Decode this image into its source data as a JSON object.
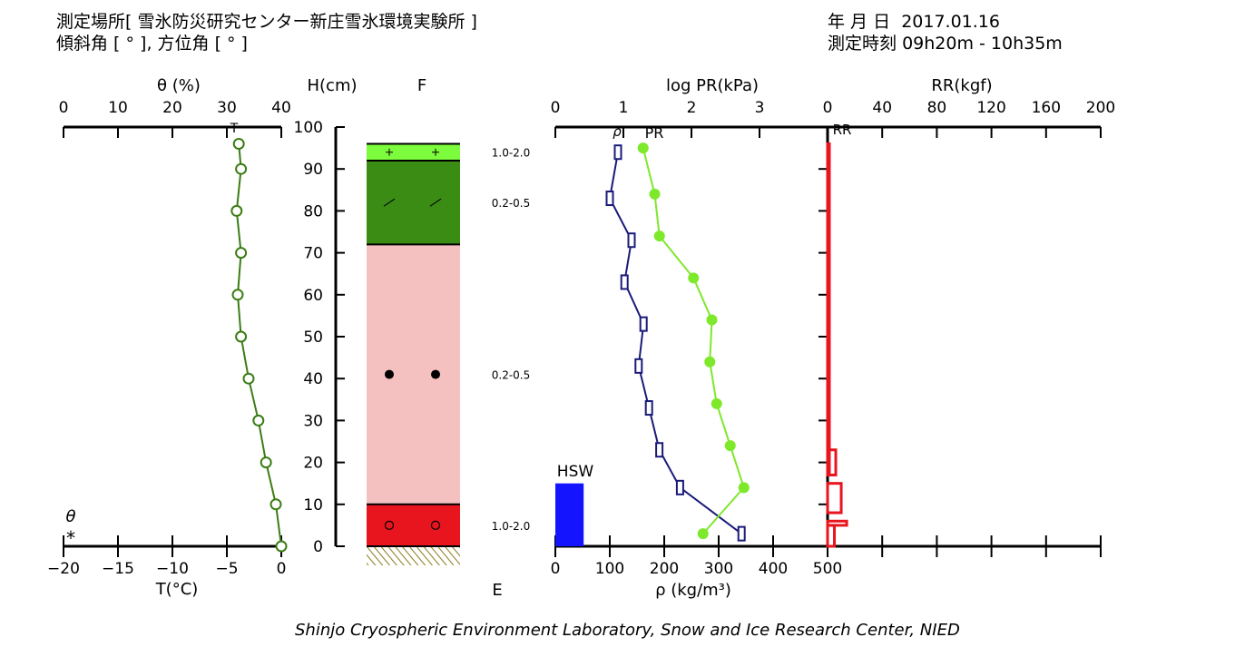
{
  "header": {
    "site_label": "測定場所",
    "site_value": "[ 雪氷防災研究センター新庄雪氷環境実験所 ]",
    "angle_label": "傾斜角 [ ° ], 方位角 [ ° ]",
    "date_label": "年 月 日",
    "date_value": "2017.01.16",
    "time_label": "測定時刻",
    "time_value": "09h20m - 10h35m"
  },
  "footer": "Shinjo Cryospheric Environment Laboratory, Snow and Ice Research Center, NIED",
  "colors": {
    "theta": "#3a7d14",
    "rho": "#1a1a7a",
    "pr": "#7ee82a",
    "rr": "#e8141e",
    "hsw": "#1414ff",
    "layer_top": "#7cfc3c",
    "layer_green": "#3a8c14",
    "layer_pink": "#f5c0c0",
    "layer_red": "#e8141e",
    "ground": "#8a7a1a"
  },
  "chart_data": {
    "type": "snow-pit-profile",
    "panels": [
      {
        "id": "theta_temperature",
        "top_axis_label": "θ (%)",
        "top_ticks": [
          "0",
          "10",
          "20",
          "30",
          "40"
        ],
        "top_range": [
          0,
          40
        ],
        "bottom_axis_label": "T(°C)",
        "bottom_ticks": [
          "−20",
          "−15",
          "−10",
          "−5",
          "0"
        ],
        "bottom_range": [
          -20,
          0
        ],
        "theta_marker_label": "T",
        "legend_theta": "θ",
        "legend_star": "*",
        "temperature": {
          "h": [
            96,
            90,
            80,
            70,
            60,
            50,
            40,
            30,
            20,
            10,
            0
          ],
          "t": [
            -3.9,
            -3.7,
            -4.1,
            -3.7,
            -4.0,
            -3.7,
            -3.0,
            -2.1,
            -1.4,
            -0.5,
            0.0
          ]
        }
      },
      {
        "id": "layers",
        "y_axis_label": "H(cm)",
        "y_ticks": [
          "0",
          "10",
          "20",
          "30",
          "40",
          "50",
          "60",
          "70",
          "80",
          "90",
          "100"
        ],
        "y_range": [
          0,
          100
        ],
        "top_label": "F",
        "bottom_label": "E",
        "layers": [
          {
            "from": 92,
            "to": 96,
            "symbol": "+",
            "color_key": "layer_top",
            "grain_size": "1.0-2.0"
          },
          {
            "from": 72,
            "to": 92,
            "symbol": "/",
            "color_key": "layer_green",
            "grain_size": "0.2-0.5"
          },
          {
            "from": 10,
            "to": 72,
            "symbol": "●",
            "color_key": "layer_pink",
            "grain_size": "0.2-0.5"
          },
          {
            "from": 0,
            "to": 10,
            "symbol": "○",
            "color_key": "layer_red",
            "grain_size": "1.0-2.0"
          }
        ]
      },
      {
        "id": "density_pr",
        "top_axis_label": "log PR(kPa)",
        "top_ticks": [
          "0",
          "1",
          "2",
          "3"
        ],
        "top_range": [
          0,
          4
        ],
        "bottom_axis_label": "ρ (kg/m³)",
        "bottom_ticks": [
          "0",
          "100",
          "200",
          "300",
          "400",
          "500"
        ],
        "bottom_range": [
          0,
          500
        ],
        "rho_label": "ρ",
        "pr_label": "PR",
        "hsw_label": "HSW",
        "hsw_value": 52,
        "hsw_height": 15,
        "density": {
          "h": [
            94,
            83,
            73,
            63,
            53,
            43,
            33,
            23,
            14,
            3
          ],
          "rho": [
            115,
            100,
            140,
            127,
            162,
            153,
            172,
            191,
            229,
            342
          ]
        },
        "pr": {
          "h": [
            95,
            84,
            74,
            64,
            54,
            44,
            34,
            24,
            14,
            3
          ],
          "log_pr": [
            1.29,
            1.46,
            1.53,
            2.03,
            2.3,
            2.27,
            2.37,
            2.57,
            2.77,
            2.17
          ]
        }
      },
      {
        "id": "ram_resistance",
        "top_axis_label": "RR(kgf)",
        "top_ticks": [
          "0",
          "40",
          "80",
          "120",
          "160",
          "200"
        ],
        "top_range": [
          0,
          200
        ],
        "rr_label": "RR",
        "rr_bars": [
          {
            "from": 96,
            "to": 17,
            "value": 1
          },
          {
            "from": 23,
            "to": 17,
            "value": 6
          },
          {
            "from": 15,
            "to": 8,
            "value": 10
          },
          {
            "from": 6,
            "to": 5,
            "value": 14
          },
          {
            "from": 5,
            "to": 0,
            "value": 5
          }
        ]
      }
    ]
  }
}
